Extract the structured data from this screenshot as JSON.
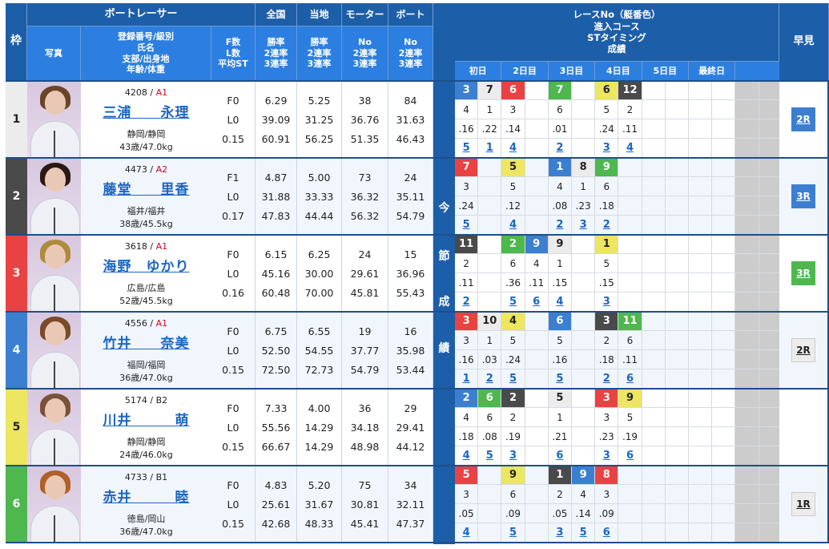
{
  "header": {
    "frame": "枠",
    "boat_racer": "ボートレーサー",
    "photo": "写真",
    "racer_info_lines": [
      "登録番号/級別",
      "氏名",
      "支部/出身地",
      "年齢/体重"
    ],
    "fl_lines": [
      "F数",
      "L数",
      "平均ST"
    ],
    "national": "全国",
    "local": "当地",
    "motor": "モーター",
    "boat": "ボート",
    "rate_lines": [
      "勝率",
      "2連率",
      "3連率"
    ],
    "no_lines": [
      "No",
      "2連率",
      "3連率"
    ],
    "results_lines": [
      "レースNo（艇番色）",
      "進入コース",
      "STタイミング",
      "成績"
    ],
    "days": [
      "初日",
      "2日目",
      "3日目",
      "4日目",
      "5日目",
      "最終日",
      ""
    ],
    "hayami": "早見",
    "side_label": [
      "今",
      "節",
      "成",
      "績"
    ]
  },
  "colors": {
    "header_dark": "#1d5ea8",
    "header_light": "#2c7fe0",
    "boat1": "#ececec",
    "boat2": "#4a4a4a",
    "boat3": "#e94242",
    "boat4": "#3c7fd0",
    "boat5": "#ece660",
    "boat6": "#4eb74e"
  },
  "racers": [
    {
      "frame": "1",
      "reg": "4208",
      "class": "A1",
      "name": "三浦　　永理",
      "branch": "静岡/静岡",
      "age_weight": "43歳/47.0kg",
      "f": "F0",
      "l": "L0",
      "st": "0.15",
      "national": [
        "6.29",
        "39.09",
        "60.91"
      ],
      "local": [
        "5.25",
        "31.25",
        "56.25"
      ],
      "motor": [
        "38",
        "36.76",
        "51.35"
      ],
      "boat": [
        "84",
        "31.63",
        "46.43"
      ],
      "hayami": "2R",
      "hayami_color": "blue",
      "results": [
        {
          "col": 0,
          "race": "3",
          "boat": 4,
          "course": "4",
          "st": ".16",
          "rank": "5"
        },
        {
          "col": 1,
          "race": "7",
          "boat": 1,
          "course": "1",
          "st": ".22",
          "rank": "1"
        },
        {
          "col": 2,
          "race": "6",
          "boat": 3,
          "course": "3",
          "st": ".14",
          "rank": "4"
        },
        {
          "col": 4,
          "race": "7",
          "boat": 6,
          "course": "6",
          "st": ".01",
          "rank": "2"
        },
        {
          "col": 6,
          "race": "6",
          "boat": 5,
          "course": "5",
          "st": ".24",
          "rank": "3"
        },
        {
          "col": 7,
          "race": "12",
          "boat": 2,
          "course": "2",
          "st": ".11",
          "rank": "4"
        }
      ]
    },
    {
      "frame": "2",
      "reg": "4473",
      "class": "A2",
      "name": "藤堂　　里香",
      "branch": "福井/福井",
      "age_weight": "38歳/45.5kg",
      "f": "F1",
      "l": "L0",
      "st": "0.17",
      "national": [
        "4.87",
        "31.88",
        "47.83"
      ],
      "local": [
        "5.00",
        "33.33",
        "44.44"
      ],
      "motor": [
        "73",
        "36.32",
        "56.32"
      ],
      "boat": [
        "24",
        "35.11",
        "54.79"
      ],
      "hayami": "3R",
      "hayami_color": "blue",
      "results": [
        {
          "col": 0,
          "race": "7",
          "boat": 3,
          "course": "3",
          "st": ".24",
          "rank": "5"
        },
        {
          "col": 2,
          "race": "5",
          "boat": 5,
          "course": "5",
          "st": ".12",
          "rank": "4"
        },
        {
          "col": 4,
          "race": "1",
          "boat": 4,
          "course": "4",
          "st": ".08",
          "rank": "2"
        },
        {
          "col": 5,
          "race": "8",
          "boat": 1,
          "course": "1",
          "st": ".23",
          "rank": "3"
        },
        {
          "col": 6,
          "race": "9",
          "boat": 6,
          "course": "6",
          "st": ".18",
          "rank": "2"
        }
      ]
    },
    {
      "frame": "3",
      "reg": "3618",
      "class": "A1",
      "name": "海野　ゆかり",
      "branch": "広島/広島",
      "age_weight": "52歳/45.5kg",
      "f": "F0",
      "l": "L0",
      "st": "0.16",
      "national": [
        "6.15",
        "45.16",
        "60.48"
      ],
      "local": [
        "6.25",
        "30.00",
        "70.00"
      ],
      "motor": [
        "24",
        "29.61",
        "45.81"
      ],
      "boat": [
        "15",
        "36.96",
        "55.43"
      ],
      "hayami": "3R",
      "hayami_color": "green",
      "results": [
        {
          "col": 0,
          "race": "11",
          "boat": 2,
          "course": "2",
          "st": ".11",
          "rank": "2"
        },
        {
          "col": 2,
          "race": "2",
          "boat": 6,
          "course": "6",
          "st": ".36",
          "rank": "5"
        },
        {
          "col": 3,
          "race": "9",
          "boat": 4,
          "course": "4",
          "st": ".11",
          "rank": "6"
        },
        {
          "col": 4,
          "race": "9",
          "boat": 1,
          "course": "1",
          "st": ".15",
          "rank": "4"
        },
        {
          "col": 6,
          "race": "1",
          "boat": 5,
          "course": "5",
          "st": ".15",
          "rank": "3"
        }
      ]
    },
    {
      "frame": "4",
      "reg": "4556",
      "class": "A1",
      "name": "竹井　　奈美",
      "branch": "福岡/福岡",
      "age_weight": "36歳/47.0kg",
      "f": "F0",
      "l": "L0",
      "st": "0.15",
      "national": [
        "6.75",
        "52.50",
        "72.50"
      ],
      "local": [
        "6.55",
        "54.55",
        "72.73"
      ],
      "motor": [
        "19",
        "37.77",
        "54.79"
      ],
      "boat": [
        "16",
        "35.98",
        "53.44"
      ],
      "hayami": "2R",
      "hayami_color": "grey",
      "results": [
        {
          "col": 0,
          "race": "3",
          "boat": 3,
          "course": "3",
          "st": ".16",
          "rank": "1"
        },
        {
          "col": 1,
          "race": "10",
          "boat": 1,
          "course": "1",
          "st": ".03",
          "rank": "2"
        },
        {
          "col": 2,
          "race": "4",
          "boat": 5,
          "course": "5",
          "st": ".24",
          "rank": "5"
        },
        {
          "col": 4,
          "race": "6",
          "boat": 4,
          "course": "5",
          "st": ".16",
          "rank": "5"
        },
        {
          "col": 6,
          "race": "3",
          "boat": 2,
          "course": "2",
          "st": ".18",
          "rank": "2"
        },
        {
          "col": 7,
          "race": "11",
          "boat": 6,
          "course": "6",
          "st": ".11",
          "rank": "6"
        }
      ]
    },
    {
      "frame": "5",
      "reg": "5174",
      "class": "B2",
      "name": "川井　　　萌",
      "branch": "静岡/静岡",
      "age_weight": "24歳/46.0kg",
      "f": "F0",
      "l": "L0",
      "st": "0.15",
      "national": [
        "7.33",
        "55.56",
        "66.67"
      ],
      "local": [
        "4.00",
        "14.29",
        "14.29"
      ],
      "motor": [
        "36",
        "34.18",
        "48.98"
      ],
      "boat": [
        "29",
        "29.41",
        "44.12"
      ],
      "hayami": "",
      "hayami_color": "none",
      "results": [
        {
          "col": 0,
          "race": "2",
          "boat": 4,
          "course": "4",
          "st": ".18",
          "rank": "4"
        },
        {
          "col": 1,
          "race": "6",
          "boat": 6,
          "course": "6",
          "st": ".08",
          "rank": "5"
        },
        {
          "col": 2,
          "race": "2",
          "boat": 2,
          "course": "2",
          "st": ".19",
          "rank": "3"
        },
        {
          "col": 4,
          "race": "5",
          "boat": 1,
          "course": "1",
          "st": ".21",
          "rank": "6"
        },
        {
          "col": 6,
          "race": "3",
          "boat": 3,
          "course": "3",
          "st": ".23",
          "rank": "3"
        },
        {
          "col": 7,
          "race": "9",
          "boat": 5,
          "course": "5",
          "st": ".19",
          "rank": "6"
        }
      ]
    },
    {
      "frame": "6",
      "reg": "4733",
      "class": "B1",
      "name": "赤井　　　睦",
      "branch": "徳島/岡山",
      "age_weight": "36歳/47.0kg",
      "f": "F0",
      "l": "L0",
      "st": "0.15",
      "national": [
        "4.83",
        "25.61",
        "42.68"
      ],
      "local": [
        "5.20",
        "31.67",
        "48.33"
      ],
      "motor": [
        "75",
        "30.81",
        "45.41"
      ],
      "boat": [
        "34",
        "32.11",
        "47.37"
      ],
      "hayami": "1R",
      "hayami_color": "grey",
      "results": [
        {
          "col": 0,
          "race": "5",
          "boat": 3,
          "course": "3",
          "st": ".05",
          "rank": "4"
        },
        {
          "col": 2,
          "race": "9",
          "boat": 5,
          "course": "6",
          "st": ".09",
          "rank": "5"
        },
        {
          "col": 4,
          "race": "1",
          "boat": 2,
          "course": "2",
          "st": ".05",
          "rank": "3"
        },
        {
          "col": 5,
          "race": "9",
          "boat": 4,
          "course": "4",
          "st": ".14",
          "rank": "5"
        },
        {
          "col": 6,
          "race": "8",
          "boat": 3,
          "course": "3",
          "st": ".09",
          "rank": "6"
        }
      ]
    }
  ]
}
